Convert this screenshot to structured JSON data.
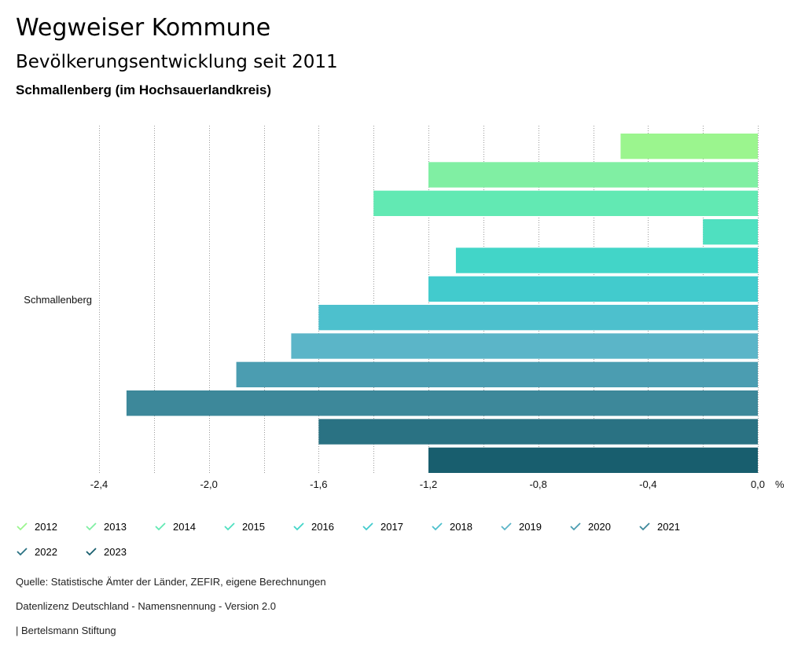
{
  "header": {
    "title": "Wegweiser Kommune",
    "subtitle": "Bevölkerungsentwicklung seit 2011",
    "region": "Schmallenberg (im Hochsauerlandkreis)"
  },
  "chart_data": {
    "type": "bar",
    "orientation": "horizontal",
    "categories": [
      "Schmallenberg"
    ],
    "series": [
      {
        "name": "2012",
        "values": [
          -0.5
        ],
        "color": "#9BF58E"
      },
      {
        "name": "2013",
        "values": [
          -1.2
        ],
        "color": "#80EFA3"
      },
      {
        "name": "2014",
        "values": [
          -1.4
        ],
        "color": "#62E9B3"
      },
      {
        "name": "2015",
        "values": [
          -0.2
        ],
        "color": "#4FE0C0"
      },
      {
        "name": "2016",
        "values": [
          -1.1
        ],
        "color": "#42D5C8"
      },
      {
        "name": "2017",
        "values": [
          -1.2
        ],
        "color": "#42CBCD"
      },
      {
        "name": "2018",
        "values": [
          -1.6
        ],
        "color": "#4DC0CD"
      },
      {
        "name": "2019",
        "values": [
          -1.7
        ],
        "color": "#5BB5C8"
      },
      {
        "name": "2020",
        "values": [
          -1.9
        ],
        "color": "#4B9DB1"
      },
      {
        "name": "2021",
        "values": [
          -2.3
        ],
        "color": "#3D889A"
      },
      {
        "name": "2022",
        "values": [
          -1.6
        ],
        "color": "#2A7283"
      },
      {
        "name": "2023",
        "values": [
          -1.2
        ],
        "color": "#185E6E"
      }
    ],
    "xlim": [
      -2.4,
      0.0
    ],
    "xticks": [
      "-2,4",
      "-2,0",
      "-1,6",
      "-1,2",
      "-0,8",
      "-0,4",
      "0,0"
    ],
    "xtick_values": [
      -2.4,
      -2.0,
      -1.6,
      -1.2,
      -0.8,
      -0.4,
      0.0
    ],
    "xunit": "%",
    "grid": true
  },
  "legend": {
    "items": [
      "2012",
      "2013",
      "2014",
      "2015",
      "2016",
      "2017",
      "2018",
      "2019",
      "2020",
      "2021",
      "2022",
      "2023"
    ]
  },
  "footer": {
    "source": "Quelle: Statistische Ämter der Länder, ZEFIR, eigene Berechnungen",
    "license": "Datenlizenz Deutschland - Namensnennung - Version 2.0",
    "brand": "| Bertelsmann Stiftung"
  }
}
